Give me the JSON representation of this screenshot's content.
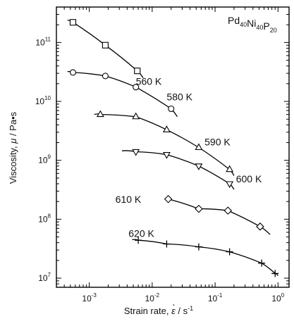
{
  "chart_data": {
    "type": "scatter",
    "x_scale": "log",
    "y_scale": "log",
    "xlim": [
      0.0003,
      1.5
    ],
    "ylim": [
      7000000.0,
      400000000000.0
    ],
    "xlabel": "Strain rate, ε̇ / s⁻¹",
    "xlabel_parts": {
      "prefix": "Strain rate, ",
      "symbol": "ε",
      "unit": " / s",
      "exponent": "-1"
    },
    "ylabel": "Viscosity, μ / Pa·s",
    "ylabel_parts": {
      "prefix": "Viscosity, ",
      "symbol": "μ",
      "unit": " / Pa•s"
    },
    "alloy_label": {
      "text": "Pd40Ni40P20",
      "parts": [
        [
          "Pd",
          "40"
        ],
        [
          "Ni",
          "40"
        ],
        [
          "P",
          "20"
        ]
      ]
    },
    "x_ticks": [
      {
        "value": 0.001,
        "mantissa": "10",
        "exp": "-3"
      },
      {
        "value": 0.01,
        "mantissa": "10",
        "exp": "-2"
      },
      {
        "value": 0.1,
        "mantissa": "10",
        "exp": "-1"
      },
      {
        "value": 1,
        "mantissa": "10",
        "exp": "0"
      }
    ],
    "y_ticks": [
      {
        "value": 10000000.0,
        "mantissa": "10",
        "exp": "7"
      },
      {
        "value": 100000000.0,
        "mantissa": "10",
        "exp": "8"
      },
      {
        "value": 1000000000.0,
        "mantissa": "10",
        "exp": "9"
      },
      {
        "value": 10000000000.0,
        "mantissa": "10",
        "exp": "10"
      },
      {
        "value": 100000000000.0,
        "mantissa": "10",
        "exp": "11"
      }
    ],
    "grid": false,
    "series": [
      {
        "name": "560 K",
        "marker": "square",
        "x": [
          0.00055,
          0.0018,
          0.0058
        ],
        "y": [
          220000000000.0,
          90000000000.0,
          33000000000.0
        ],
        "fit_x": [
          0.00045,
          0.0072
        ],
        "fit_y": [
          240000000000.0,
          25000000000.0
        ],
        "label_at": [
          0.0055,
          19000000000.0
        ]
      },
      {
        "name": "580 K",
        "marker": "circle",
        "x": [
          0.00055,
          0.0018,
          0.0055,
          0.02
        ],
        "y": [
          31000000000.0,
          27000000000.0,
          17500000000.0,
          7500000000.0
        ],
        "fit_x": [
          0.00045,
          0.025
        ],
        "fit_y": [
          32000000000.0,
          5500000000.0
        ],
        "label_at": [
          0.017,
          10500000000.0
        ]
      },
      {
        "name": "590 K",
        "marker": "triangle",
        "x": [
          0.0015,
          0.0055,
          0.017,
          0.055,
          0.17
        ],
        "y": [
          6000000000.0,
          5500000000.0,
          3300000000.0,
          1650000000.0,
          700000000.0
        ],
        "fit_x": [
          0.0012,
          0.2
        ],
        "fit_y": [
          6000000000.0,
          550000000.0
        ],
        "label_at": [
          0.068,
          1800000000.0
        ]
      },
      {
        "name": "600 K",
        "marker": "invtriangle",
        "x": [
          0.0055,
          0.017,
          0.055,
          0.17
        ],
        "y": [
          1400000000.0,
          1250000000.0,
          800000000.0,
          400000000.0
        ],
        "fit_x": [
          0.0033,
          0.2
        ],
        "fit_y": [
          1450000000.0,
          320000000.0
        ],
        "label_at": [
          0.215,
          420000000.0
        ]
      },
      {
        "name": "610 K",
        "marker": "diamond",
        "x": [
          0.018,
          0.055,
          0.16,
          0.52
        ],
        "y": [
          220000000.0,
          150000000.0,
          140000000.0,
          75000000.0
        ],
        "fit_x": [
          0.0175,
          0.75
        ],
        "fit_y": [
          220000000.0,
          55000000.0
        ],
        "label_at": [
          0.0026,
          190000000.0
        ]
      },
      {
        "name": "620 K",
        "marker": "plus",
        "x": [
          0.006,
          0.017,
          0.055,
          0.17,
          0.55,
          0.9
        ],
        "y": [
          44000000.0,
          38000000.0,
          34000000.0,
          28000000.0,
          18000000.0,
          12000000.0
        ],
        "fit_x": [
          0.0048,
          1.0
        ],
        "fit_y": [
          45000000.0,
          11000000.0
        ],
        "label_at": [
          0.0042,
          50000000.0
        ]
      }
    ]
  }
}
